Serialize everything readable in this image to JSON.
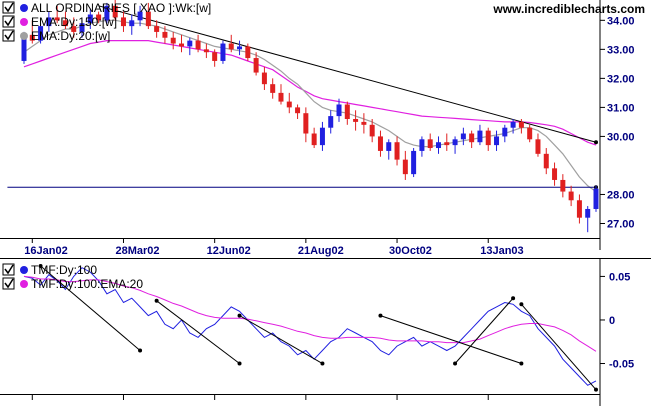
{
  "site": {
    "url": "www.incrediblecharts.com"
  },
  "price_panel": {
    "legend": [
      {
        "label": "ALL ORDINARIES [ XAO ]:Wk:[w]",
        "color": "#2020e0",
        "checked": true
      },
      {
        "label": "EMA:Dy:150:[w]",
        "color": "#e020e0",
        "checked": true
      },
      {
        "label": "EMA:Dy:20:[w]",
        "color": "#a0a0a0",
        "checked": true
      }
    ],
    "y_ticks": [
      "34.00",
      "33.00",
      "32.00",
      "31.00",
      "30.00",
      "28.00",
      "27.00"
    ],
    "x_ticks": [
      "16Jan02",
      "28Mar02",
      "12Jun02",
      "21Aug02",
      "30Oct02",
      "13Jan03"
    ],
    "current_level": "28.00"
  },
  "tmf_panel": {
    "legend": [
      {
        "label": "TMF:Dy:100",
        "color": "#2020e0",
        "checked": true
      },
      {
        "label": "TMF:Dy:100:EMA:20",
        "color": "#e020e0",
        "checked": true
      }
    ],
    "y_ticks": [
      "0.05",
      "0",
      "-0.05"
    ]
  },
  "chart_data": [
    {
      "type": "candlestick",
      "title": "ALL ORDINARIES [ XAO ]:Wk:[w]",
      "x_tick_labels": [
        "16Jan02",
        "28Mar02",
        "12Jun02",
        "21Aug02",
        "30Oct02",
        "13Jan03"
      ],
      "ylim": [
        26.5,
        34.7
      ],
      "colors": {
        "up": "#2020e0",
        "down": "#e02020",
        "ema150": "#e020e0",
        "ema20": "#a0a0a0"
      },
      "ohlc": [
        [
          32.6,
          33.6,
          32.5,
          33.5
        ],
        [
          33.5,
          34.0,
          33.2,
          33.3
        ],
        [
          33.3,
          33.9,
          33.2,
          33.8
        ],
        [
          33.8,
          34.3,
          33.6,
          34.1
        ],
        [
          34.1,
          34.5,
          33.9,
          34.0
        ],
        [
          34.0,
          34.3,
          33.7,
          33.8
        ],
        [
          33.8,
          34.1,
          33.4,
          33.6
        ],
        [
          33.6,
          34.0,
          33.4,
          33.9
        ],
        [
          33.9,
          34.4,
          33.7,
          34.2
        ],
        [
          34.2,
          34.3,
          33.9,
          34.0
        ],
        [
          34.0,
          34.6,
          33.9,
          34.5
        ],
        [
          34.5,
          34.7,
          34.0,
          34.1
        ],
        [
          34.1,
          34.3,
          33.6,
          33.8
        ],
        [
          33.8,
          34.2,
          33.5,
          34.0
        ],
        [
          34.0,
          34.5,
          33.8,
          34.3
        ],
        [
          34.3,
          34.6,
          33.7,
          33.8
        ],
        [
          33.8,
          34.0,
          33.4,
          33.6
        ],
        [
          33.6,
          33.8,
          33.2,
          33.4
        ],
        [
          33.4,
          33.6,
          33.0,
          33.2
        ],
        [
          33.2,
          33.5,
          32.9,
          33.1
        ],
        [
          33.1,
          33.4,
          32.8,
          33.3
        ],
        [
          33.3,
          33.5,
          32.9,
          33.0
        ],
        [
          33.0,
          33.2,
          32.7,
          32.9
        ],
        [
          32.9,
          33.0,
          32.4,
          32.6
        ],
        [
          32.6,
          33.3,
          32.5,
          33.2
        ],
        [
          33.2,
          33.5,
          32.9,
          33.0
        ],
        [
          33.0,
          33.3,
          32.8,
          33.1
        ],
        [
          33.1,
          33.2,
          32.6,
          32.7
        ],
        [
          32.7,
          32.9,
          32.1,
          32.2
        ],
        [
          32.2,
          32.4,
          31.6,
          31.8
        ],
        [
          31.8,
          32.0,
          31.3,
          31.5
        ],
        [
          31.5,
          31.8,
          31.1,
          31.2
        ],
        [
          31.2,
          31.5,
          30.8,
          31.0
        ],
        [
          31.0,
          31.1,
          30.6,
          30.8
        ],
        [
          30.8,
          31.0,
          29.8,
          30.1
        ],
        [
          30.1,
          30.3,
          29.6,
          29.7
        ],
        [
          29.7,
          30.5,
          29.5,
          30.3
        ],
        [
          30.3,
          30.9,
          30.1,
          30.7
        ],
        [
          30.7,
          31.3,
          30.5,
          31.1
        ],
        [
          31.1,
          31.2,
          30.4,
          30.6
        ],
        [
          30.6,
          30.9,
          30.2,
          30.5
        ],
        [
          30.5,
          30.8,
          30.1,
          30.4
        ],
        [
          30.4,
          30.6,
          29.8,
          30.0
        ],
        [
          30.0,
          30.2,
          29.3,
          29.5
        ],
        [
          29.5,
          29.9,
          29.2,
          29.8
        ],
        [
          29.8,
          30.0,
          29.0,
          29.2
        ],
        [
          29.2,
          29.5,
          28.5,
          28.7
        ],
        [
          28.7,
          29.6,
          28.6,
          29.5
        ],
        [
          29.5,
          30.0,
          29.3,
          29.9
        ],
        [
          29.9,
          30.1,
          29.5,
          29.6
        ],
        [
          29.6,
          30.0,
          29.4,
          29.8
        ],
        [
          29.8,
          30.1,
          29.5,
          29.7
        ],
        [
          29.7,
          30.0,
          29.4,
          29.9
        ],
        [
          29.9,
          30.3,
          29.7,
          30.1
        ],
        [
          30.1,
          30.2,
          29.6,
          29.8
        ],
        [
          29.8,
          30.4,
          29.7,
          30.2
        ],
        [
          30.2,
          30.3,
          29.5,
          29.7
        ],
        [
          29.7,
          30.2,
          29.5,
          30.0
        ],
        [
          30.0,
          30.4,
          29.8,
          30.3
        ],
        [
          30.3,
          30.6,
          30.1,
          30.5
        ],
        [
          30.5,
          30.6,
          30.1,
          30.3
        ],
        [
          30.3,
          30.4,
          29.8,
          29.9
        ],
        [
          29.9,
          30.1,
          29.3,
          29.4
        ],
        [
          29.4,
          29.6,
          28.7,
          28.9
        ],
        [
          28.9,
          29.1,
          28.3,
          28.5
        ],
        [
          28.5,
          28.7,
          27.9,
          28.1
        ],
        [
          28.1,
          28.3,
          27.6,
          27.8
        ],
        [
          27.8,
          28.0,
          27.0,
          27.2
        ],
        [
          27.2,
          27.6,
          26.7,
          27.5
        ],
        [
          27.5,
          28.3,
          27.4,
          28.2
        ]
      ],
      "ema150": [
        32.4,
        32.5,
        32.6,
        32.7,
        32.8,
        32.9,
        33.0,
        33.1,
        33.2,
        33.25,
        33.3,
        33.3,
        33.3,
        33.3,
        33.3,
        33.3,
        33.25,
        33.2,
        33.15,
        33.1,
        33.05,
        33.0,
        32.95,
        32.9,
        32.85,
        32.8,
        32.7,
        32.6,
        32.5,
        32.4,
        32.3,
        32.1,
        31.9,
        31.7,
        31.55,
        31.4,
        31.3,
        31.25,
        31.2,
        31.15,
        31.1,
        31.05,
        31.0,
        30.95,
        30.9,
        30.85,
        30.8,
        30.75,
        30.7,
        30.68,
        30.66,
        30.64,
        30.62,
        30.6,
        30.58,
        30.56,
        30.54,
        30.52,
        30.5,
        30.5,
        30.5,
        30.48,
        30.44,
        30.4,
        30.35,
        30.25,
        30.1,
        29.95,
        29.8,
        29.7
      ],
      "ema20": [
        32.9,
        33.1,
        33.3,
        33.5,
        33.6,
        33.7,
        33.7,
        33.8,
        33.9,
        33.95,
        34.0,
        34.0,
        33.95,
        33.9,
        33.9,
        33.85,
        33.8,
        33.7,
        33.6,
        33.5,
        33.4,
        33.3,
        33.2,
        33.1,
        33.05,
        33.0,
        32.95,
        32.9,
        32.8,
        32.65,
        32.45,
        32.25,
        32.0,
        31.8,
        31.5,
        31.2,
        31.0,
        30.9,
        30.85,
        30.8,
        30.7,
        30.6,
        30.5,
        30.35,
        30.2,
        30.0,
        29.8,
        29.7,
        29.65,
        29.65,
        29.7,
        29.75,
        29.8,
        29.85,
        29.9,
        29.95,
        30.0,
        30.05,
        30.1,
        30.2,
        30.3,
        30.3,
        30.2,
        30.0,
        29.7,
        29.4,
        29.0,
        28.6,
        28.3,
        28.1
      ],
      "trendlines": [
        {
          "from": [
            9,
            34.5
          ],
          "to": [
            69,
            29.8
          ],
          "color": "#000000"
        },
        {
          "from": [
            -2,
            28.25
          ],
          "to": [
            69,
            28.25
          ],
          "color": "#000080"
        }
      ]
    },
    {
      "type": "line",
      "title": "TMF:Dy:100",
      "ylim": [
        -0.085,
        0.07
      ],
      "series": [
        {
          "name": "TMF:Dy:100",
          "color": "#2020e0",
          "values": [
            0.05,
            0.048,
            0.04,
            0.052,
            0.045,
            0.035,
            0.05,
            0.06,
            0.055,
            0.045,
            0.03,
            0.035,
            0.02,
            0.025,
            0.015,
            0.005,
            0.01,
            -0.005,
            -0.01,
            0.0,
            -0.015,
            -0.02,
            -0.01,
            -0.005,
            0.005,
            0.015,
            0.01,
            0.0,
            -0.01,
            -0.02,
            -0.015,
            -0.025,
            -0.03,
            -0.04,
            -0.035,
            -0.045,
            -0.035,
            -0.025,
            -0.02,
            -0.01,
            -0.015,
            -0.02,
            -0.025,
            -0.035,
            -0.04,
            -0.03,
            -0.025,
            -0.02,
            -0.03,
            -0.025,
            -0.03,
            -0.035,
            -0.03,
            -0.02,
            -0.01,
            0.0,
            0.01,
            0.015,
            0.02,
            0.018,
            0.01,
            0.005,
            -0.01,
            -0.02,
            -0.03,
            -0.045,
            -0.055,
            -0.065,
            -0.075,
            -0.07
          ]
        },
        {
          "name": "TMF:Dy:100:EMA:20",
          "color": "#e020e0",
          "values": [
            0.05,
            0.049,
            0.047,
            0.047,
            0.046,
            0.044,
            0.044,
            0.045,
            0.046,
            0.046,
            0.044,
            0.042,
            0.039,
            0.037,
            0.034,
            0.03,
            0.027,
            0.023,
            0.019,
            0.016,
            0.012,
            0.008,
            0.005,
            0.003,
            0.002,
            0.002,
            0.002,
            0.001,
            -0.001,
            -0.003,
            -0.005,
            -0.007,
            -0.01,
            -0.013,
            -0.015,
            -0.018,
            -0.02,
            -0.021,
            -0.021,
            -0.02,
            -0.02,
            -0.02,
            -0.02,
            -0.021,
            -0.023,
            -0.024,
            -0.024,
            -0.024,
            -0.024,
            -0.025,
            -0.025,
            -0.026,
            -0.026,
            -0.026,
            -0.024,
            -0.022,
            -0.018,
            -0.014,
            -0.01,
            -0.007,
            -0.005,
            -0.004,
            -0.004,
            -0.006,
            -0.008,
            -0.012,
            -0.017,
            -0.024,
            -0.03,
            -0.036
          ]
        }
      ],
      "trendlines": [
        {
          "from": [
            2,
            0.062
          ],
          "to": [
            14,
            -0.035
          ],
          "color": "#000000"
        },
        {
          "from": [
            16,
            0.022
          ],
          "to": [
            26,
            -0.05
          ],
          "color": "#000000"
        },
        {
          "from": [
            26,
            0.005
          ],
          "to": [
            36,
            -0.05
          ],
          "color": "#000000"
        },
        {
          "from": [
            43,
            0.005
          ],
          "to": [
            60,
            -0.05
          ],
          "color": "#000000"
        },
        {
          "from": [
            52,
            -0.05
          ],
          "to": [
            59,
            0.025
          ],
          "color": "#000000"
        },
        {
          "from": [
            60,
            0.018
          ],
          "to": [
            69,
            -0.08
          ],
          "color": "#000000"
        }
      ]
    }
  ]
}
